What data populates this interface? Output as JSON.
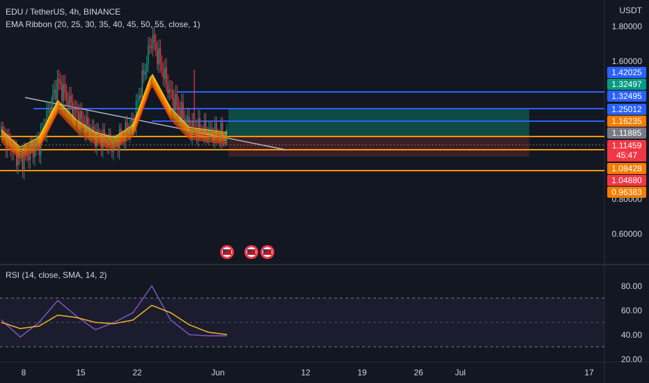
{
  "header": {
    "symbol_line": "EDU / TetherUS, 4h, BINANCE",
    "indicator_line": "EMA Ribbon (20, 25, 30, 35, 40, 45, 50, 55, close, 1)"
  },
  "rsi_legend": "RSI (14, close, SMA, 14, 2)",
  "currency": "USDT",
  "countdown": "45:47",
  "price_axis_ticks": [
    "1.80000",
    "1.60000",
    "0.80000",
    "0.60000"
  ],
  "rsi_axis_ticks": [
    "80.00",
    "60.00",
    "40.00",
    "20.00"
  ],
  "time_axis_ticks": [
    "8",
    "15",
    "22",
    "Jun",
    "12",
    "19",
    "26",
    "Jul",
    "17"
  ],
  "price_labels": [
    {
      "text": "1.42025",
      "color": "#2962ff"
    },
    {
      "text": "1.32497",
      "color": "#089981"
    },
    {
      "text": "1.32495",
      "color": "#2962ff"
    },
    {
      "text": "1.25012",
      "color": "#2962ff"
    },
    {
      "text": "1.16235",
      "color": "#f57c00"
    },
    {
      "text": "1.11885",
      "color": "#787b86"
    },
    {
      "text": "1.11459",
      "color": "#f23645"
    },
    {
      "text": "1.08428",
      "color": "#f57c00"
    },
    {
      "text": "1.04880",
      "color": "#f23645"
    },
    {
      "text": "0.96383",
      "color": "#f57c00"
    }
  ],
  "colors": {
    "background": "#131722",
    "grid": "#2a2e39",
    "blue_line": "#2962ff",
    "orange_line": "#ff9800",
    "trendline": "#b2b5be",
    "rsi_line": "#7e57c2",
    "rsi_ma": "#f5b325",
    "long_target_zone": "#0f4a44",
    "long_stop_zone": "#4a1d25"
  },
  "icons": [
    "us-flag-event-icon",
    "us-flag-event-icon",
    "us-flag-event-icon"
  ],
  "chart_data": {
    "type": "line",
    "price_series": {
      "name": "EDU/USDT 4h",
      "x": [
        "May 5",
        "May 8",
        "May 12",
        "May 15",
        "May 19",
        "May 22",
        "May 25",
        "May 27",
        "May 28",
        "May 29",
        "May 30",
        "May 31",
        "Jun 1"
      ],
      "close": [
        1.13,
        1.06,
        1.1,
        1.25,
        1.17,
        1.12,
        1.1,
        1.15,
        1.36,
        1.22,
        1.14,
        1.13,
        1.11885
      ]
    },
    "horizontal_levels": [
      1.42025,
      1.32495,
      1.25012,
      1.16235,
      1.08428,
      0.96383
    ],
    "rsi": {
      "ylim": [
        20,
        80
      ],
      "bands": [
        30,
        50,
        70
      ],
      "x": [
        "May 5",
        "May 8",
        "May 12",
        "May 15",
        "May 19",
        "May 22",
        "May 25",
        "May 27",
        "May 28",
        "May 29",
        "May 30",
        "May 31",
        "Jun 1"
      ],
      "values": [
        52,
        38,
        50,
        68,
        55,
        44,
        50,
        58,
        80,
        52,
        40,
        39,
        39
      ],
      "ma": [
        50,
        45,
        47,
        56,
        54,
        50,
        49,
        52,
        64,
        58,
        48,
        42,
        40
      ]
    }
  }
}
